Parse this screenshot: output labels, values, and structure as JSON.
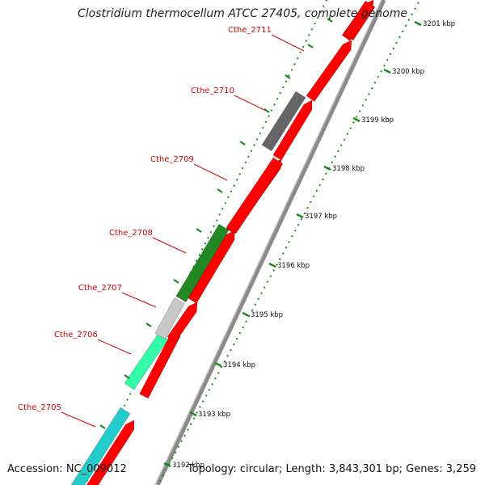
{
  "title": "Clostridium thermocellum ATCC 27405, complete genome",
  "accession": "Accession: NC_009012",
  "summary": "Topology: circular; Length: 3,843,301 bp; Genes: 3,259",
  "colors": {
    "forward_gene": "#ff0000",
    "backbone": "#8a8a8a",
    "tick": "#1a8a1a",
    "label": "#d40000"
  },
  "genes": [
    {
      "name": "Cthe_2705",
      "color": "#22cccc"
    },
    {
      "name": "Cthe_2706",
      "color": "#33ffaa"
    },
    {
      "name": "Cthe_2707",
      "color": "#c8c8c8"
    },
    {
      "name": "Cthe_2708",
      "color": "#228822"
    },
    {
      "name": "Cthe_2709",
      "color": "#ff0000"
    },
    {
      "name": "Cthe_2710",
      "color": "#666666"
    },
    {
      "name": "Cthe_2711",
      "color": "#ff0000"
    }
  ],
  "ticks": [
    "3192 kbp",
    "3193 kbp",
    "3194 kbp",
    "3195 kbp",
    "3196 kbp",
    "3197 kbp",
    "3198 kbp",
    "3199 kbp",
    "3200 kbp",
    "3201 kbp"
  ]
}
